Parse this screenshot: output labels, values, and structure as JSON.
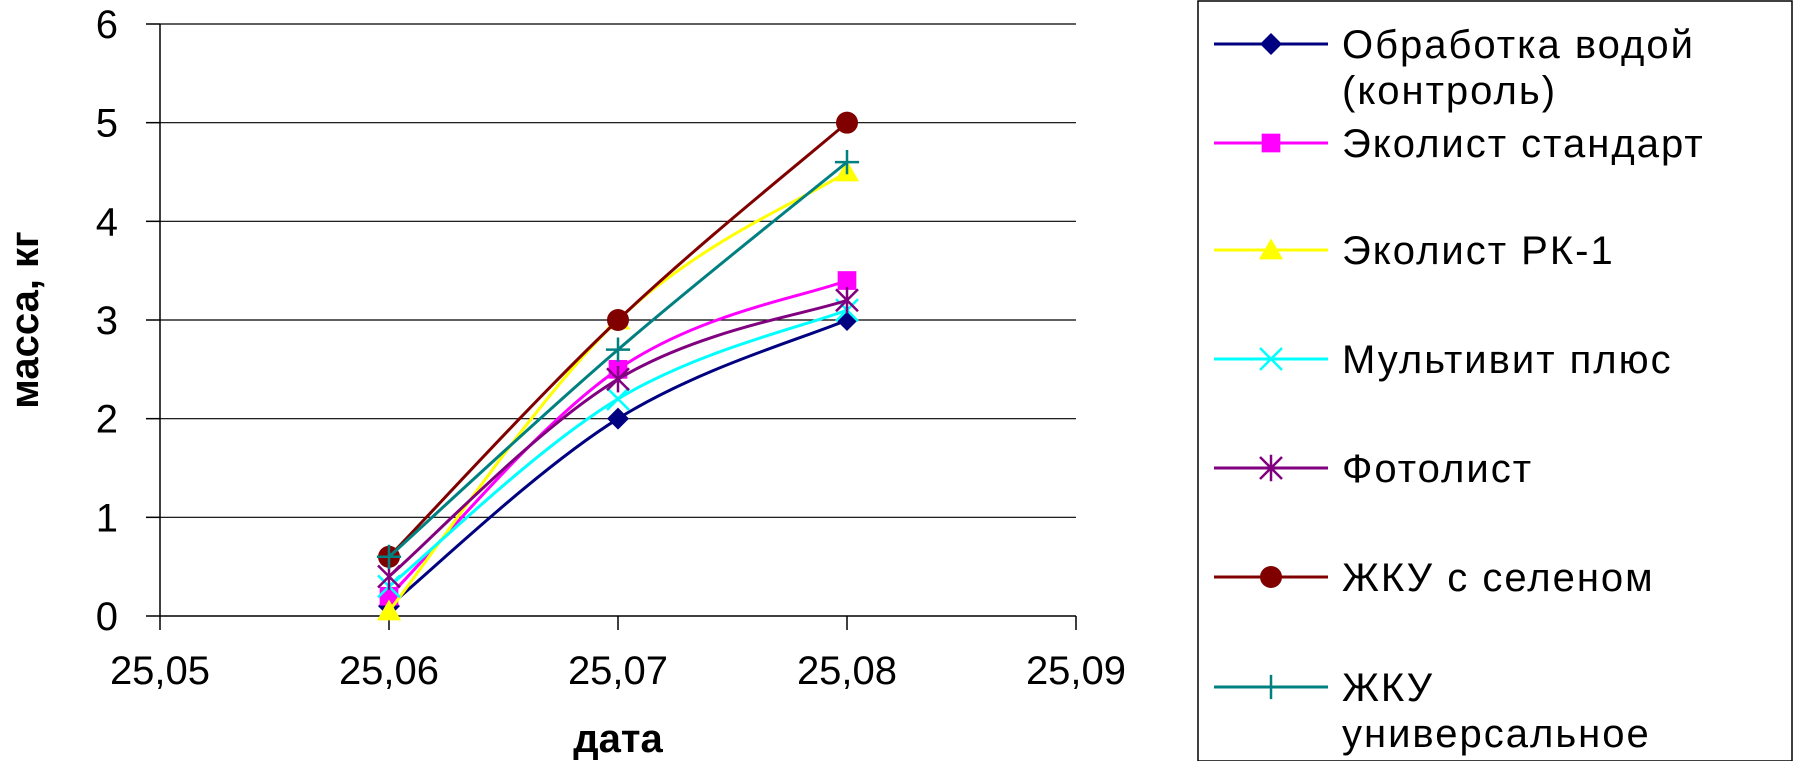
{
  "chart_data": {
    "type": "line",
    "xlabel": "дата",
    "ylabel": "масса, кг",
    "x_tick_labels": [
      "25,05",
      "25,06",
      "25,07",
      "25,08",
      "25,09"
    ],
    "y_tick_labels": [
      "0",
      "1",
      "2",
      "3",
      "4",
      "5",
      "6"
    ],
    "x_categories": [
      "25,06",
      "25,07",
      "25,08"
    ],
    "ylim": [
      0,
      6
    ],
    "grid": "horizontal",
    "legend_position": "right",
    "smooth": true,
    "series": [
      {
        "name": "Обработка водой (контроль)",
        "legend_lines": [
          "Обработка водой",
          "(контроль)"
        ],
        "color": "#000080",
        "marker": "diamond",
        "values": [
          0.1,
          2.0,
          3.0
        ]
      },
      {
        "name": "Эколист стандарт",
        "legend_lines": [
          "Эколист стандарт"
        ],
        "color": "#ff00ff",
        "marker": "square",
        "values": [
          0.2,
          2.5,
          3.4
        ]
      },
      {
        "name": "Эколист РК-1",
        "legend_lines": [
          "Эколист РК-1"
        ],
        "color": "#ffff00",
        "marker": "triangle",
        "values": [
          0.05,
          3.0,
          4.5
        ]
      },
      {
        "name": "Мультивит плюс",
        "legend_lines": [
          "Мультивит плюс"
        ],
        "color": "#00ffff",
        "marker": "x",
        "values": [
          0.3,
          2.2,
          3.1
        ]
      },
      {
        "name": "Фотолист",
        "legend_lines": [
          "Фотолист"
        ],
        "color": "#800080",
        "marker": "star",
        "values": [
          0.4,
          2.4,
          3.2
        ]
      },
      {
        "name": "ЖКУ с селеном",
        "legend_lines": [
          "ЖКУ с селеном"
        ],
        "color": "#800000",
        "marker": "circle",
        "values": [
          0.6,
          3.0,
          5.0
        ]
      },
      {
        "name": "ЖКУ универсальное",
        "legend_lines": [
          "ЖКУ",
          "универсальное"
        ],
        "color": "#008080",
        "marker": "plus",
        "values": [
          0.6,
          2.7,
          4.6
        ]
      }
    ]
  }
}
